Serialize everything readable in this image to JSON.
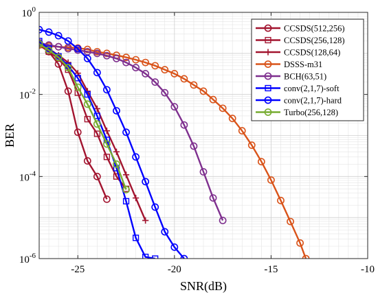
{
  "chart_data": {
    "type": "line",
    "title": "",
    "xlabel": "SNR(dB)",
    "ylabel": "BER",
    "xlim": [
      -27,
      -10
    ],
    "ylim": [
      1e-06,
      1
    ],
    "yscale": "log",
    "grid": true,
    "legend_position": "top-right",
    "x_ticks": [
      {
        "value": -25,
        "label": "-25"
      },
      {
        "value": -20,
        "label": "-20"
      },
      {
        "value": -15,
        "label": "-15"
      },
      {
        "value": -10,
        "label": "-10"
      }
    ],
    "y_ticks": [
      {
        "value": 1,
        "base": "10",
        "exp": "0"
      },
      {
        "value": 0.01,
        "base": "10",
        "exp": "-2"
      },
      {
        "value": 0.0001,
        "base": "10",
        "exp": "-4"
      },
      {
        "value": 1e-06,
        "base": "10",
        "exp": "-6"
      }
    ],
    "series": [
      {
        "name": "CCSDS(512,256)",
        "color": "#A2142F",
        "marker": "circle",
        "x": [
          -27,
          -26.5,
          -26,
          -25.5,
          -25,
          -24.5,
          -24,
          -23.5
        ],
        "y": [
          0.18,
          0.11,
          0.055,
          0.012,
          0.0012,
          0.00024,
          0.0001,
          2.8e-05
        ]
      },
      {
        "name": "CCSDS(256,128)",
        "color": "#A2142F",
        "marker": "square",
        "x": [
          -27,
          -26.5,
          -26,
          -25.5,
          -25,
          -24.5,
          -24,
          -23.5,
          -23,
          -22.5
        ],
        "y": [
          0.16,
          0.11,
          0.075,
          0.04,
          0.011,
          0.0025,
          0.0011,
          0.0003,
          0.0001,
          5e-05
        ]
      },
      {
        "name": "CCSDS(128,64)",
        "color": "#A2142F",
        "marker": "plus",
        "x": [
          -27,
          -26.5,
          -26,
          -25.5,
          -25,
          -24.5,
          -24,
          -23.5,
          -23,
          -22.5,
          -22,
          -21.5
        ],
        "y": [
          0.18,
          0.13,
          0.09,
          0.06,
          0.033,
          0.012,
          0.0045,
          0.0013,
          0.0004,
          0.00011,
          3e-05,
          8.5e-06
        ]
      },
      {
        "name": "DSSS-m31",
        "color": "#D95319",
        "marker": "circle",
        "x": [
          -27,
          -26.5,
          -26,
          -25.5,
          -25,
          -24.5,
          -24,
          -23.5,
          -23,
          -22.5,
          -22,
          -21.5,
          -21,
          -20.5,
          -20,
          -19.5,
          -19,
          -18.5,
          -18,
          -17.5,
          -17,
          -16.5,
          -16,
          -15.5,
          -15,
          -14.5,
          -14,
          -13.5,
          -13.2
        ],
        "y": [
          0.16,
          0.15,
          0.145,
          0.14,
          0.135,
          0.125,
          0.11,
          0.1,
          0.09,
          0.08,
          0.07,
          0.06,
          0.05,
          0.04,
          0.032,
          0.024,
          0.017,
          0.012,
          0.0075,
          0.0046,
          0.0026,
          0.0013,
          0.00058,
          0.00023,
          8.2e-05,
          2.6e-05,
          8e-06,
          2.4e-06,
          1e-06
        ]
      },
      {
        "name": "BCH(63,51)",
        "color": "#7E2F8E",
        "marker": "circle",
        "x": [
          -27,
          -26.5,
          -26,
          -25.5,
          -25,
          -24.5,
          -24,
          -23.5,
          -23,
          -22.5,
          -22,
          -21.5,
          -21,
          -20.5,
          -20,
          -19.5,
          -19,
          -18.5,
          -18,
          -17.5
        ],
        "y": [
          0.18,
          0.16,
          0.145,
          0.13,
          0.12,
          0.11,
          0.1,
          0.088,
          0.075,
          0.06,
          0.045,
          0.032,
          0.02,
          0.011,
          0.005,
          0.0018,
          0.00055,
          0.00013,
          3e-05,
          8.5e-06
        ]
      },
      {
        "name": "conv(2,1,7)-soft",
        "color": "#0000FF",
        "marker": "square",
        "x": [
          -27,
          -26.5,
          -26,
          -25.5,
          -25,
          -24.5,
          -24,
          -23.5,
          -23,
          -22.5,
          -22,
          -21.5,
          -21
        ],
        "y": [
          0.2,
          0.13,
          0.085,
          0.05,
          0.025,
          0.01,
          0.003,
          0.00078,
          0.00016,
          2.5e-05,
          3.2e-06,
          1.1e-06,
          1e-06
        ]
      },
      {
        "name": "conv(2,1,7)-hard",
        "color": "#0000FF",
        "marker": "circle",
        "x": [
          -27,
          -26.5,
          -26,
          -25.5,
          -25,
          -24.5,
          -24,
          -23.5,
          -23,
          -22.5,
          -22,
          -21.5,
          -21,
          -20.5,
          -20,
          -19.5
        ],
        "y": [
          0.38,
          0.33,
          0.27,
          0.2,
          0.13,
          0.075,
          0.034,
          0.013,
          0.004,
          0.0012,
          0.0003,
          7.5e-05,
          1.8e-05,
          4.5e-06,
          1.9e-06,
          1e-06
        ]
      },
      {
        "name": "Turbo(256,128)",
        "color": "#77AC30",
        "marker": "circle",
        "x": [
          -27,
          -26.5,
          -26,
          -25.5,
          -25,
          -24.5,
          -24,
          -23.5,
          -23,
          -22.5
        ],
        "y": [
          0.17,
          0.12,
          0.08,
          0.045,
          0.015,
          0.0058,
          0.0019,
          0.00062,
          0.0002,
          4.8e-05
        ]
      }
    ]
  }
}
